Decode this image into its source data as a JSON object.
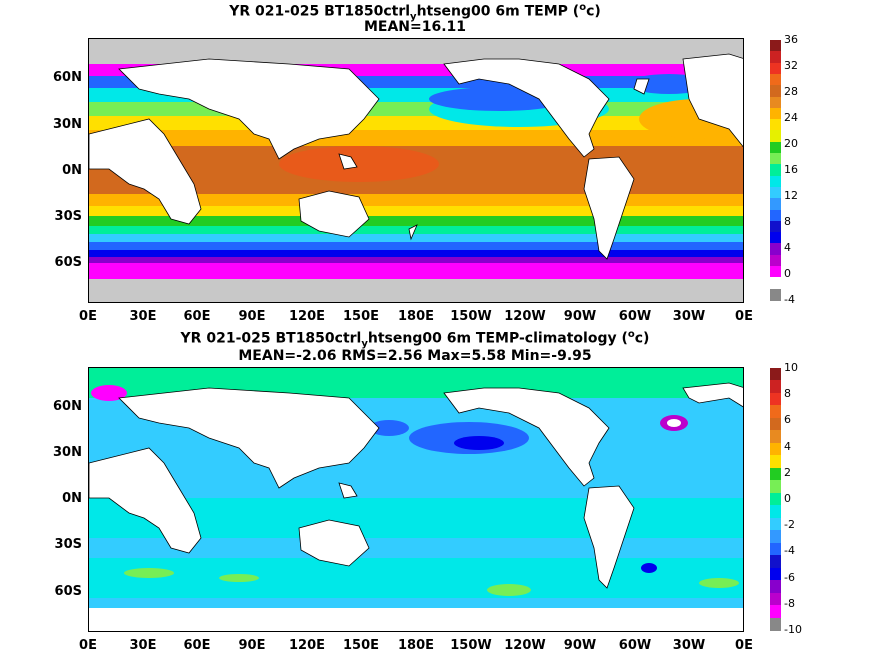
{
  "panel_top": {
    "title": "YR 021-025 BT1850ctrl",
    "title_sub": "y",
    "title_rest": "htseng00 6m TEMP (",
    "title_unit_sup": "o",
    "title_unit_end": "c)",
    "subtitle": "MEAN=16.11",
    "y_labels": [
      "60N",
      "30N",
      "0N",
      "30S",
      "60S"
    ],
    "x_labels": [
      "0E",
      "30E",
      "60E",
      "90E",
      "120E",
      "150E",
      "180E",
      "150W",
      "120W",
      "90W",
      "60W",
      "30W",
      "0E"
    ],
    "colorbar_ticks": [
      "36",
      "32",
      "28",
      "24",
      "20",
      "16",
      "12",
      "8",
      "4",
      "0",
      "-4"
    ],
    "colorbar_colors": [
      "#8b1a1a",
      "#cc2222",
      "#ee3322",
      "#f06a1a",
      "#d2691e",
      "#e88a20",
      "#ffb300",
      "#ffe000",
      "#e6f000",
      "#22cc22",
      "#77ee55",
      "#00ee99",
      "#00e8e8",
      "#33ccff",
      "#3399ff",
      "#2266ff",
      "#1111cc",
      "#0000ee",
      "#8800cc",
      "#bb00cc",
      "#ff00ff",
      "#ffffff",
      "#888888"
    ]
  },
  "panel_bottom": {
    "title": "YR 021-025 BT1850ctrl",
    "title_sub": "y",
    "title_rest": "htseng00 6m TEMP-climatology (",
    "title_unit_sup": "o",
    "title_unit_end": "c)",
    "subtitle": "MEAN=-2.06   RMS=2.56   Max=5.58   Min=-9.95",
    "y_labels": [
      "60N",
      "30N",
      "0N",
      "30S",
      "60S"
    ],
    "x_labels": [
      "0E",
      "30E",
      "60E",
      "90E",
      "120E",
      "150E",
      "180E",
      "150W",
      "120W",
      "90W",
      "60W",
      "30W",
      "0E"
    ],
    "colorbar_ticks": [
      "10",
      "8",
      "6",
      "4",
      "2",
      "0",
      "-2",
      "-4",
      "-6",
      "-8",
      "-10"
    ],
    "colorbar_colors": [
      "#8b1a1a",
      "#cc2222",
      "#ee3322",
      "#f06a1a",
      "#d2691e",
      "#e88a20",
      "#ffb300",
      "#ffe000",
      "#22cc22",
      "#77ee55",
      "#00ee99",
      "#00e8e8",
      "#33ccff",
      "#3399ff",
      "#2266ff",
      "#1111cc",
      "#0000ee",
      "#8800cc",
      "#bb00cc",
      "#ff00ff",
      "#888888"
    ]
  },
  "colors": {
    "land": "#ffffff",
    "mask": "#c8c8c8",
    "outline": "#000000"
  }
}
